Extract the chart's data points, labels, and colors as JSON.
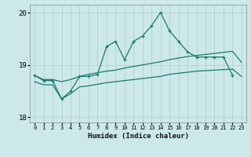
{
  "title": "",
  "xlabel": "Humidex (Indice chaleur)",
  "x": [
    0,
    1,
    2,
    3,
    4,
    5,
    6,
    7,
    8,
    9,
    10,
    11,
    12,
    13,
    14,
    15,
    16,
    17,
    18,
    19,
    20,
    21,
    22,
    23
  ],
  "line_volatile": [
    18.8,
    18.7,
    18.7,
    18.35,
    18.5,
    18.78,
    18.78,
    18.82,
    19.35,
    19.45,
    19.1,
    19.45,
    19.55,
    19.75,
    20.0,
    19.65,
    19.45,
    19.25,
    19.15,
    19.15,
    19.15,
    19.15,
    18.8,
    null
  ],
  "line_middle": [
    18.8,
    18.72,
    18.72,
    18.68,
    18.72,
    18.78,
    18.82,
    18.85,
    18.88,
    18.9,
    18.94,
    18.97,
    19.0,
    19.03,
    19.06,
    19.1,
    19.13,
    19.16,
    19.18,
    19.2,
    19.22,
    19.24,
    19.26,
    19.05
  ],
  "line_lower": [
    18.68,
    18.62,
    18.62,
    18.35,
    18.45,
    18.58,
    18.6,
    18.63,
    18.66,
    18.68,
    18.7,
    18.72,
    18.74,
    18.76,
    18.78,
    18.82,
    18.84,
    18.86,
    18.88,
    18.89,
    18.9,
    18.91,
    18.92,
    18.78
  ],
  "ylim": [
    17.9,
    20.15
  ],
  "yticks": [
    18,
    19,
    20
  ],
  "background_color": "#cce8e8",
  "line_color": "#1a7a6e",
  "grid_color": "#aacfcf"
}
